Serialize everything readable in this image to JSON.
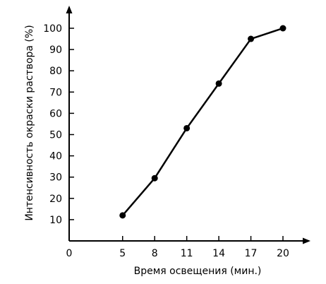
{
  "chart_data": {
    "type": "line",
    "title": "",
    "xlabel": "Время освещения (мин.)",
    "ylabel": "Интенсивность окраски раствора (%)",
    "x_ticks": [
      0,
      5,
      8,
      11,
      14,
      17,
      20
    ],
    "y_ticks": [
      10,
      20,
      30,
      40,
      50,
      60,
      70,
      80,
      90,
      100
    ],
    "series": [
      {
        "x": [
          5,
          8,
          11,
          14,
          17,
          20
        ],
        "values": [
          12,
          29.5,
          53,
          74,
          95,
          100
        ]
      }
    ],
    "grid": false,
    "legend": "none",
    "colors": {
      "line": "#000000",
      "marker": "#000000",
      "axis": "#000000"
    }
  }
}
